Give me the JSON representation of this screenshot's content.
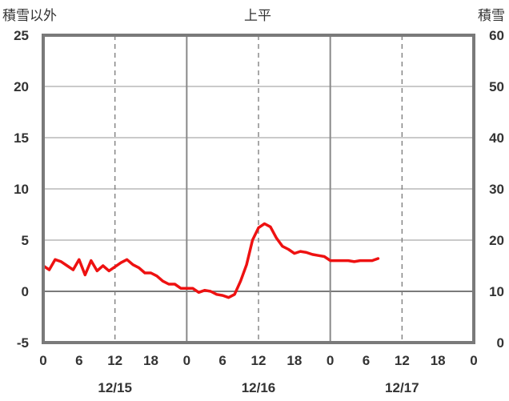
{
  "chart_data": {
    "type": "line",
    "title": "上平",
    "left_axis_label": "積雪以外",
    "right_axis_label": "積雪",
    "left_ylim": [
      -5,
      25
    ],
    "left_ticks": [
      "25",
      "20",
      "15",
      "10",
      "5",
      "0",
      "-5"
    ],
    "right_ylim": [
      0,
      60
    ],
    "right_ticks": [
      "60",
      "50",
      "40",
      "30",
      "20",
      "10",
      "0"
    ],
    "x_range_hours": [
      0,
      72
    ],
    "x_tick_labels": [
      "0",
      "6",
      "12",
      "18",
      "0",
      "6",
      "12",
      "18",
      "0",
      "6",
      "12",
      "18",
      "0"
    ],
    "date_labels": [
      {
        "label": "12/15",
        "hour": 12
      },
      {
        "label": "12/16",
        "hour": 36
      },
      {
        "label": "12/17",
        "hour": 60
      }
    ],
    "grid": true,
    "series": [
      {
        "axis": "left",
        "color": "#ee1111",
        "points": [
          [
            0,
            2.5
          ],
          [
            1,
            2.1
          ],
          [
            2,
            3.1
          ],
          [
            3,
            2.9
          ],
          [
            4,
            2.5
          ],
          [
            5,
            2.1
          ],
          [
            6,
            3.1
          ],
          [
            7,
            1.6
          ],
          [
            8,
            3.0
          ],
          [
            9,
            2.0
          ],
          [
            10,
            2.5
          ],
          [
            11,
            2.0
          ],
          [
            12,
            2.4
          ],
          [
            13,
            2.8
          ],
          [
            14,
            3.1
          ],
          [
            15,
            2.6
          ],
          [
            16,
            2.3
          ],
          [
            17,
            1.8
          ],
          [
            18,
            1.8
          ],
          [
            19,
            1.5
          ],
          [
            20,
            1.0
          ],
          [
            21,
            0.7
          ],
          [
            22,
            0.7
          ],
          [
            23,
            0.3
          ],
          [
            24,
            0.3
          ],
          [
            25,
            0.3
          ],
          [
            26,
            -0.1
          ],
          [
            27,
            0.1
          ],
          [
            28,
            0.0
          ],
          [
            29,
            -0.3
          ],
          [
            30,
            -0.4
          ],
          [
            31,
            -0.6
          ],
          [
            32,
            -0.3
          ],
          [
            33,
            1.0
          ],
          [
            34,
            2.6
          ],
          [
            35,
            5.0
          ],
          [
            36,
            6.2
          ],
          [
            37,
            6.6
          ],
          [
            38,
            6.3
          ],
          [
            39,
            5.2
          ],
          [
            40,
            4.4
          ],
          [
            41,
            4.1
          ],
          [
            42,
            3.7
          ],
          [
            43,
            3.9
          ],
          [
            44,
            3.8
          ],
          [
            45,
            3.6
          ],
          [
            46,
            3.5
          ],
          [
            47,
            3.4
          ],
          [
            48,
            3.0
          ],
          [
            49,
            3.0
          ],
          [
            50,
            3.0
          ],
          [
            51,
            3.0
          ],
          [
            52,
            2.9
          ],
          [
            53,
            3.0
          ],
          [
            54,
            3.0
          ],
          [
            55,
            3.0
          ],
          [
            56,
            3.2
          ]
        ]
      },
      {
        "axis": "right",
        "color": "#6633aa",
        "points": [
          [
            0,
            0
          ],
          [
            56,
            0
          ]
        ]
      }
    ]
  }
}
